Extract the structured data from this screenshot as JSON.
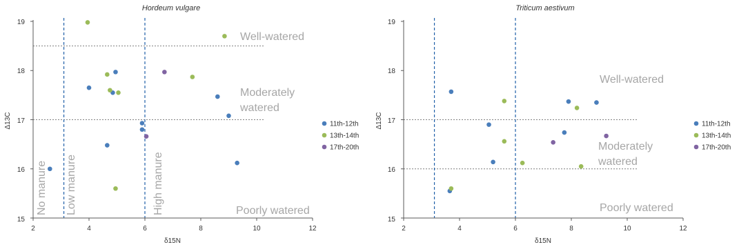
{
  "chart_data": [
    {
      "type": "scatter",
      "title": "Hordeum vulgare",
      "xlabel": "δ15N",
      "ylabel": "Δ13C",
      "xlim": [
        2,
        12
      ],
      "ylim": [
        15,
        19
      ],
      "xticks": [
        "2",
        "4",
        "6",
        "8",
        "10",
        "12"
      ],
      "yticks": [
        "15",
        "16",
        "17",
        "18",
        "19"
      ],
      "grid": false,
      "legend_position": "right",
      "series": [
        {
          "name": "11th-12th",
          "color": "#4a7ebb",
          "points": [
            [
              2.6,
              16.0
            ],
            [
              4.0,
              17.65
            ],
            [
              4.85,
              17.55
            ],
            [
              4.95,
              17.97
            ],
            [
              4.65,
              16.48
            ],
            [
              5.9,
              16.93
            ],
            [
              5.9,
              16.8
            ],
            [
              8.6,
              17.47
            ],
            [
              9.0,
              17.08
            ],
            [
              9.3,
              16.12
            ]
          ]
        },
        {
          "name": "13th-14th",
          "color": "#9bbb59",
          "points": [
            [
              3.95,
              18.98
            ],
            [
              4.65,
              17.92
            ],
            [
              4.75,
              17.6
            ],
            [
              5.05,
              17.55
            ],
            [
              4.95,
              15.6
            ],
            [
              7.7,
              17.87
            ],
            [
              8.85,
              18.7
            ]
          ]
        },
        {
          "name": "17th-20th",
          "color": "#8064a2",
          "points": [
            [
              6.7,
              17.97
            ],
            [
              6.05,
              16.66
            ]
          ]
        }
      ],
      "threshold_lines": {
        "horizontal": [
          18.5,
          17.0
        ],
        "vertical": [
          3.1,
          6.0
        ]
      },
      "annotations": {
        "zones": [
          "Well-watered",
          "Moderately",
          "watered",
          "Poorly watered"
        ],
        "manure": [
          "No manure",
          "Low manure",
          "High manure"
        ]
      }
    },
    {
      "type": "scatter",
      "title": "Triticum aestivum",
      "xlabel": "δ15N",
      "ylabel": "Δ13C",
      "xlim": [
        2,
        12
      ],
      "ylim": [
        15,
        19
      ],
      "xticks": [
        "2",
        "4",
        "6",
        "8",
        "10",
        "12"
      ],
      "yticks": [
        "15",
        "16",
        "17",
        "18",
        "19"
      ],
      "grid": false,
      "legend_position": "right",
      "series": [
        {
          "name": "11th-12th",
          "color": "#4a7ebb",
          "points": [
            [
              3.7,
              17.57
            ],
            [
              5.05,
              16.9
            ],
            [
              5.2,
              16.14
            ],
            [
              3.65,
              15.55
            ],
            [
              7.75,
              16.74
            ],
            [
              7.9,
              17.37
            ],
            [
              8.9,
              17.35
            ]
          ]
        },
        {
          "name": "13th-14th",
          "color": "#9bbb59",
          "points": [
            [
              5.6,
              17.38
            ],
            [
              5.6,
              16.56
            ],
            [
              6.25,
              16.12
            ],
            [
              8.2,
              17.24
            ],
            [
              8.35,
              16.05
            ],
            [
              3.7,
              15.6
            ]
          ]
        },
        {
          "name": "17th-20th",
          "color": "#8064a2",
          "points": [
            [
              7.35,
              16.54
            ],
            [
              9.25,
              16.67
            ]
          ]
        }
      ],
      "threshold_lines": {
        "horizontal": [
          17.0,
          16.0
        ],
        "vertical": [
          3.1,
          6.0
        ]
      },
      "annotations": {
        "zones": [
          "Well-watered",
          "Moderately",
          "watered",
          "Poorly watered"
        ]
      }
    }
  ]
}
